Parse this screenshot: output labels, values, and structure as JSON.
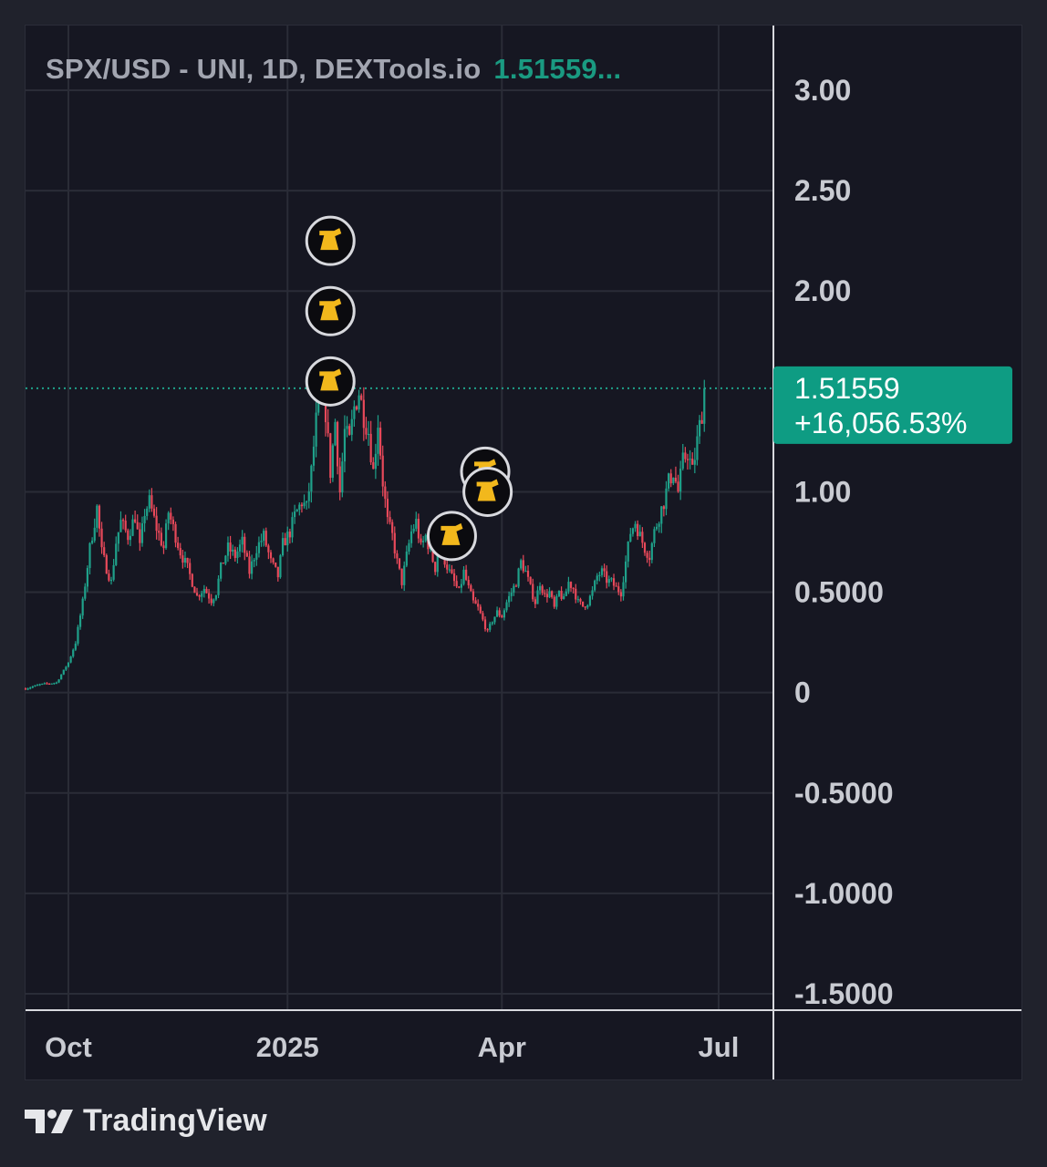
{
  "header": {
    "symbol": "SPX/USD - UNI, 1D, DEXTools.io",
    "last_value": "1.51559..."
  },
  "price_label": {
    "price": "1.51559",
    "change": "+16,056.53%",
    "color": "#0e9c83"
  },
  "footer": {
    "brand": "TradingView"
  },
  "colors": {
    "up": "#1fa18a",
    "down": "#e8495a",
    "marker": "#f2b81c",
    "grid": "#2a2c37",
    "axis_text": "#c9cbd2"
  },
  "chart_data": {
    "type": "candlestick",
    "title": "SPX/USD - UNI, 1D, DEXTools.io",
    "interval": "1D",
    "last_price": 1.51559,
    "ylim": [
      -1.5,
      3.0
    ],
    "y_ticks": [
      "3.00",
      "2.50",
      "2.00",
      "1.00",
      "0.5000",
      "0",
      "-0.5000",
      "-1.0000",
      "-1.5000"
    ],
    "x_ticks": [
      "Oct",
      "2025",
      "Apr",
      "Jul"
    ],
    "x_range": [
      "2024-09-13",
      "2025-07-24"
    ],
    "grid": true,
    "closes": [
      [
        0,
        0.02
      ],
      [
        6,
        0.04
      ],
      [
        13,
        0.05
      ],
      [
        18,
        0.15
      ],
      [
        21,
        0.25
      ],
      [
        24,
        0.45
      ],
      [
        27,
        0.72
      ],
      [
        30,
        0.92
      ],
      [
        32,
        0.7
      ],
      [
        34,
        0.62
      ],
      [
        36,
        0.55
      ],
      [
        38,
        0.75
      ],
      [
        40,
        0.85
      ],
      [
        43,
        0.78
      ],
      [
        46,
        0.88
      ],
      [
        48,
        0.72
      ],
      [
        50,
        0.9
      ],
      [
        52,
        0.95
      ],
      [
        55,
        0.82
      ],
      [
        58,
        0.72
      ],
      [
        60,
        0.9
      ],
      [
        63,
        0.78
      ],
      [
        65,
        0.7
      ],
      [
        68,
        0.62
      ],
      [
        70,
        0.55
      ],
      [
        72,
        0.48
      ],
      [
        75,
        0.52
      ],
      [
        78,
        0.46
      ],
      [
        80,
        0.5
      ],
      [
        82,
        0.62
      ],
      [
        85,
        0.72
      ],
      [
        88,
        0.68
      ],
      [
        91,
        0.75
      ],
      [
        94,
        0.6
      ],
      [
        97,
        0.72
      ],
      [
        100,
        0.78
      ],
      [
        103,
        0.65
      ],
      [
        106,
        0.58
      ],
      [
        108,
        0.74
      ],
      [
        111,
        0.8
      ],
      [
        113,
        0.88
      ],
      [
        116,
        0.95
      ],
      [
        118,
        0.92
      ],
      [
        120,
        1.1
      ],
      [
        122,
        1.35
      ],
      [
        124,
        1.5
      ],
      [
        126,
        1.4
      ],
      [
        128,
        1.1
      ],
      [
        130,
        1.35
      ],
      [
        132,
        1.0
      ],
      [
        134,
        1.3
      ],
      [
        136,
        1.25
      ],
      [
        138,
        1.42
      ],
      [
        140,
        1.5
      ],
      [
        142,
        1.38
      ],
      [
        144,
        1.3
      ],
      [
        146,
        1.1
      ],
      [
        148,
        1.35
      ],
      [
        150,
        1.05
      ],
      [
        152,
        0.85
      ],
      [
        154,
        0.78
      ],
      [
        156,
        0.65
      ],
      [
        158,
        0.55
      ],
      [
        160,
        0.68
      ],
      [
        162,
        0.8
      ],
      [
        164,
        0.85
      ],
      [
        166,
        0.72
      ],
      [
        168,
        0.78
      ],
      [
        170,
        0.7
      ],
      [
        172,
        0.62
      ],
      [
        174,
        0.76
      ],
      [
        176,
        0.66
      ],
      [
        178,
        0.6
      ],
      [
        180,
        0.55
      ],
      [
        182,
        0.5
      ],
      [
        184,
        0.6
      ],
      [
        186,
        0.52
      ],
      [
        188,
        0.45
      ],
      [
        190,
        0.42
      ],
      [
        192,
        0.36
      ],
      [
        194,
        0.3
      ],
      [
        196,
        0.36
      ],
      [
        198,
        0.4
      ],
      [
        200,
        0.38
      ],
      [
        202,
        0.45
      ],
      [
        204,
        0.5
      ],
      [
        206,
        0.55
      ],
      [
        208,
        0.65
      ],
      [
        210,
        0.6
      ],
      [
        212,
        0.52
      ],
      [
        214,
        0.45
      ],
      [
        216,
        0.55
      ],
      [
        218,
        0.48
      ],
      [
        220,
        0.5
      ],
      [
        222,
        0.42
      ],
      [
        224,
        0.5
      ],
      [
        226,
        0.46
      ],
      [
        228,
        0.55
      ],
      [
        230,
        0.52
      ],
      [
        232,
        0.45
      ],
      [
        234,
        0.43
      ],
      [
        236,
        0.45
      ],
      [
        238,
        0.5
      ],
      [
        240,
        0.58
      ],
      [
        242,
        0.6
      ],
      [
        244,
        0.56
      ],
      [
        246,
        0.55
      ],
      [
        248,
        0.52
      ],
      [
        250,
        0.5
      ],
      [
        252,
        0.65
      ],
      [
        254,
        0.8
      ],
      [
        256,
        0.85
      ],
      [
        258,
        0.78
      ],
      [
        260,
        0.72
      ],
      [
        262,
        0.68
      ],
      [
        264,
        0.8
      ],
      [
        266,
        0.88
      ],
      [
        268,
        0.95
      ],
      [
        270,
        1.05
      ],
      [
        272,
        1.1
      ],
      [
        274,
        1.0
      ],
      [
        276,
        1.15
      ],
      [
        278,
        1.2
      ],
      [
        280,
        1.1
      ],
      [
        282,
        1.25
      ],
      [
        284,
        1.4
      ],
      [
        285,
        1.51559
      ]
    ],
    "event_markers_approx_dates": [
      "2025-01-19",
      "2025-01-19",
      "2025-01-19",
      "2025-03-11",
      "2025-03-25",
      "2025-03-26"
    ]
  }
}
